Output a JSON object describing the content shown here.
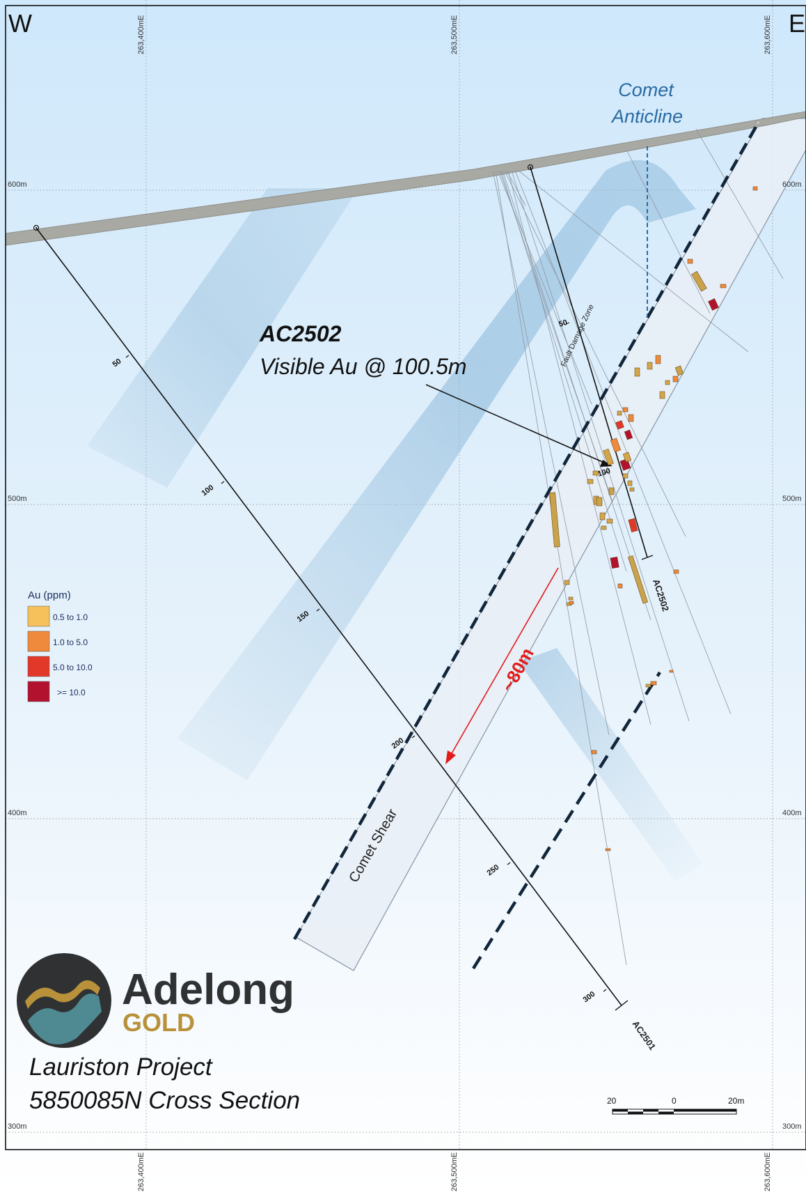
{
  "section": {
    "compass_west": "W",
    "compass_east": "E",
    "easting_labels": [
      "263,400mE",
      "263,500mE",
      "263,600mE"
    ],
    "rl_labels": [
      "600m",
      "500m",
      "400m",
      "300m"
    ]
  },
  "annotations": {
    "anticline_line1": "Comet",
    "anticline_line2": "Anticline",
    "callout_hole": "AC2502",
    "callout_text": "Visible Au @ 100.5m",
    "fault_zone": "Fault Damage Zone",
    "shear": "Comet Shear",
    "offset": "~80m"
  },
  "drillholes": [
    {
      "id": "AC2501",
      "depth_ticks": [
        "50",
        "100",
        "150",
        "200",
        "250",
        "300"
      ]
    },
    {
      "id": "AC2502",
      "depth_ticks": [
        "50",
        "100"
      ]
    }
  ],
  "legend": {
    "title": "Au (ppm)",
    "items": [
      {
        "label": "0.5 to 1.0",
        "color": "#f6c15a"
      },
      {
        "label": "1.0 to 5.0",
        "color": "#ef8a3c"
      },
      {
        "label": "5.0 to 10.0",
        "color": "#e2382a"
      },
      {
        "label": ">= 10.0",
        "color": "#b3122e"
      }
    ]
  },
  "brand": {
    "name": "Adelong",
    "sub": "GOLD",
    "colors": {
      "dark": "#2f3133",
      "gold": "#b8913a",
      "teal": "#4f8a93"
    }
  },
  "title": {
    "line1": "Lauriston Project",
    "line2": "5850085N Cross Section"
  },
  "scale_bar": {
    "labels": [
      "20",
      "0",
      "20m"
    ]
  }
}
